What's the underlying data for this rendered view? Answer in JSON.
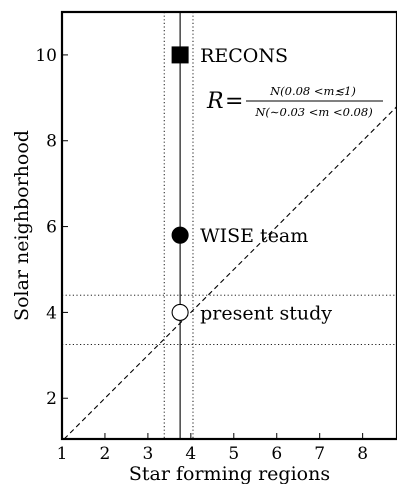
{
  "chart_data": {
    "type": "scatter",
    "xlabel": "Star forming regions",
    "ylabel": "Solar neighborhood",
    "xlim": [
      1,
      8.8
    ],
    "ylim": [
      1.05,
      11
    ],
    "xticks": [
      "1",
      "2",
      "3",
      "4",
      "5",
      "6",
      "7",
      "8"
    ],
    "yticks": [
      "2",
      "4",
      "6",
      "8",
      "10"
    ],
    "points": [
      {
        "label": "RECONS",
        "x": 3.75,
        "y": 10.0,
        "marker": "square",
        "fill": "#000000"
      },
      {
        "label": "WISE team",
        "x": 3.75,
        "y": 5.8,
        "marker": "circle",
        "fill": "#000000"
      },
      {
        "label": "present study",
        "x": 3.75,
        "y": 4.0,
        "marker": "circle",
        "fill": "#ffffff"
      }
    ],
    "reference_lines": {
      "vertical_solid": 3.75,
      "vertical_dotted": [
        3.38,
        4.05
      ],
      "horizontal_dotted": [
        3.25,
        4.4
      ],
      "diagonal_dashed": "y = x"
    },
    "annotation": {
      "lhs": "R",
      "eq": "=",
      "numerator": "N(0.08 <m≲1)",
      "denominator": "N(∼0.03 <m <0.08)"
    }
  },
  "colors": {
    "ink": "#000000",
    "background": "#ffffff"
  }
}
